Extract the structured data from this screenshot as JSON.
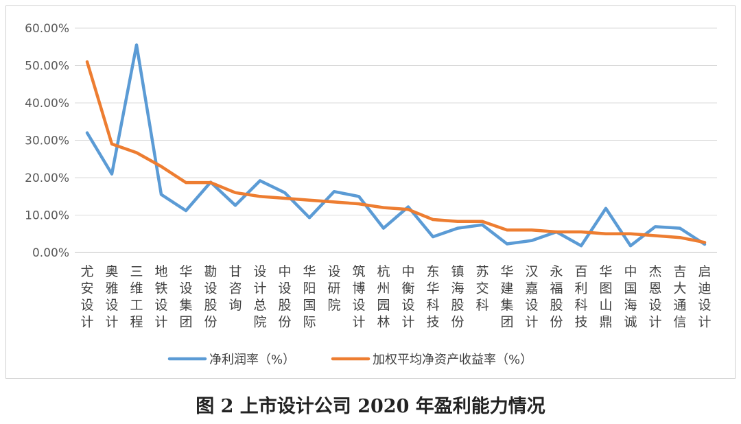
{
  "caption": "图 2  上市设计公司 2020 年盈利能力情况",
  "chart_data": {
    "type": "line",
    "title": "",
    "categories": [
      "尤安设计",
      "奥雅设计",
      "三维工程",
      "地铁设计",
      "华设集团",
      "勘设股份",
      "甘咨询",
      "设计总院",
      "中设股份",
      "华阳国际",
      "设研院",
      "筑博设计",
      "杭州园林",
      "中衡设计",
      "东华科技",
      "镇海股份",
      "苏交科",
      "华建集团",
      "汉嘉设计",
      "永福股份",
      "百利科技",
      "华图山鼎",
      "中国海诚",
      "杰恩设计",
      "吉大通信",
      "启迪设计"
    ],
    "yticks": [
      "0.00%",
      "10.00%",
      "20.00%",
      "30.00%",
      "40.00%",
      "50.00%",
      "60.00%"
    ],
    "ylim": [
      0,
      60
    ],
    "grid": true,
    "legend_position": "bottom",
    "series": [
      {
        "name": "净利润率（%）",
        "color": "#5b9bd5",
        "values": [
          32.0,
          21.0,
          55.5,
          15.5,
          11.2,
          18.8,
          12.6,
          19.2,
          16.0,
          9.3,
          16.3,
          15.0,
          6.5,
          12.2,
          4.2,
          6.5,
          7.4,
          2.3,
          3.2,
          5.5,
          1.8,
          11.8,
          1.8,
          6.9,
          6.5,
          2.2
        ]
      },
      {
        "name": "加权平均净资产收益率（%）",
        "color": "#ed7d31",
        "values": [
          51.0,
          29.0,
          26.7,
          23.0,
          18.7,
          18.7,
          16.0,
          15.0,
          14.5,
          14.0,
          13.5,
          13.0,
          12.0,
          11.5,
          8.8,
          8.3,
          8.3,
          6.0,
          6.0,
          5.5,
          5.5,
          5.0,
          5.0,
          4.5,
          4.0,
          2.7
        ]
      }
    ]
  }
}
